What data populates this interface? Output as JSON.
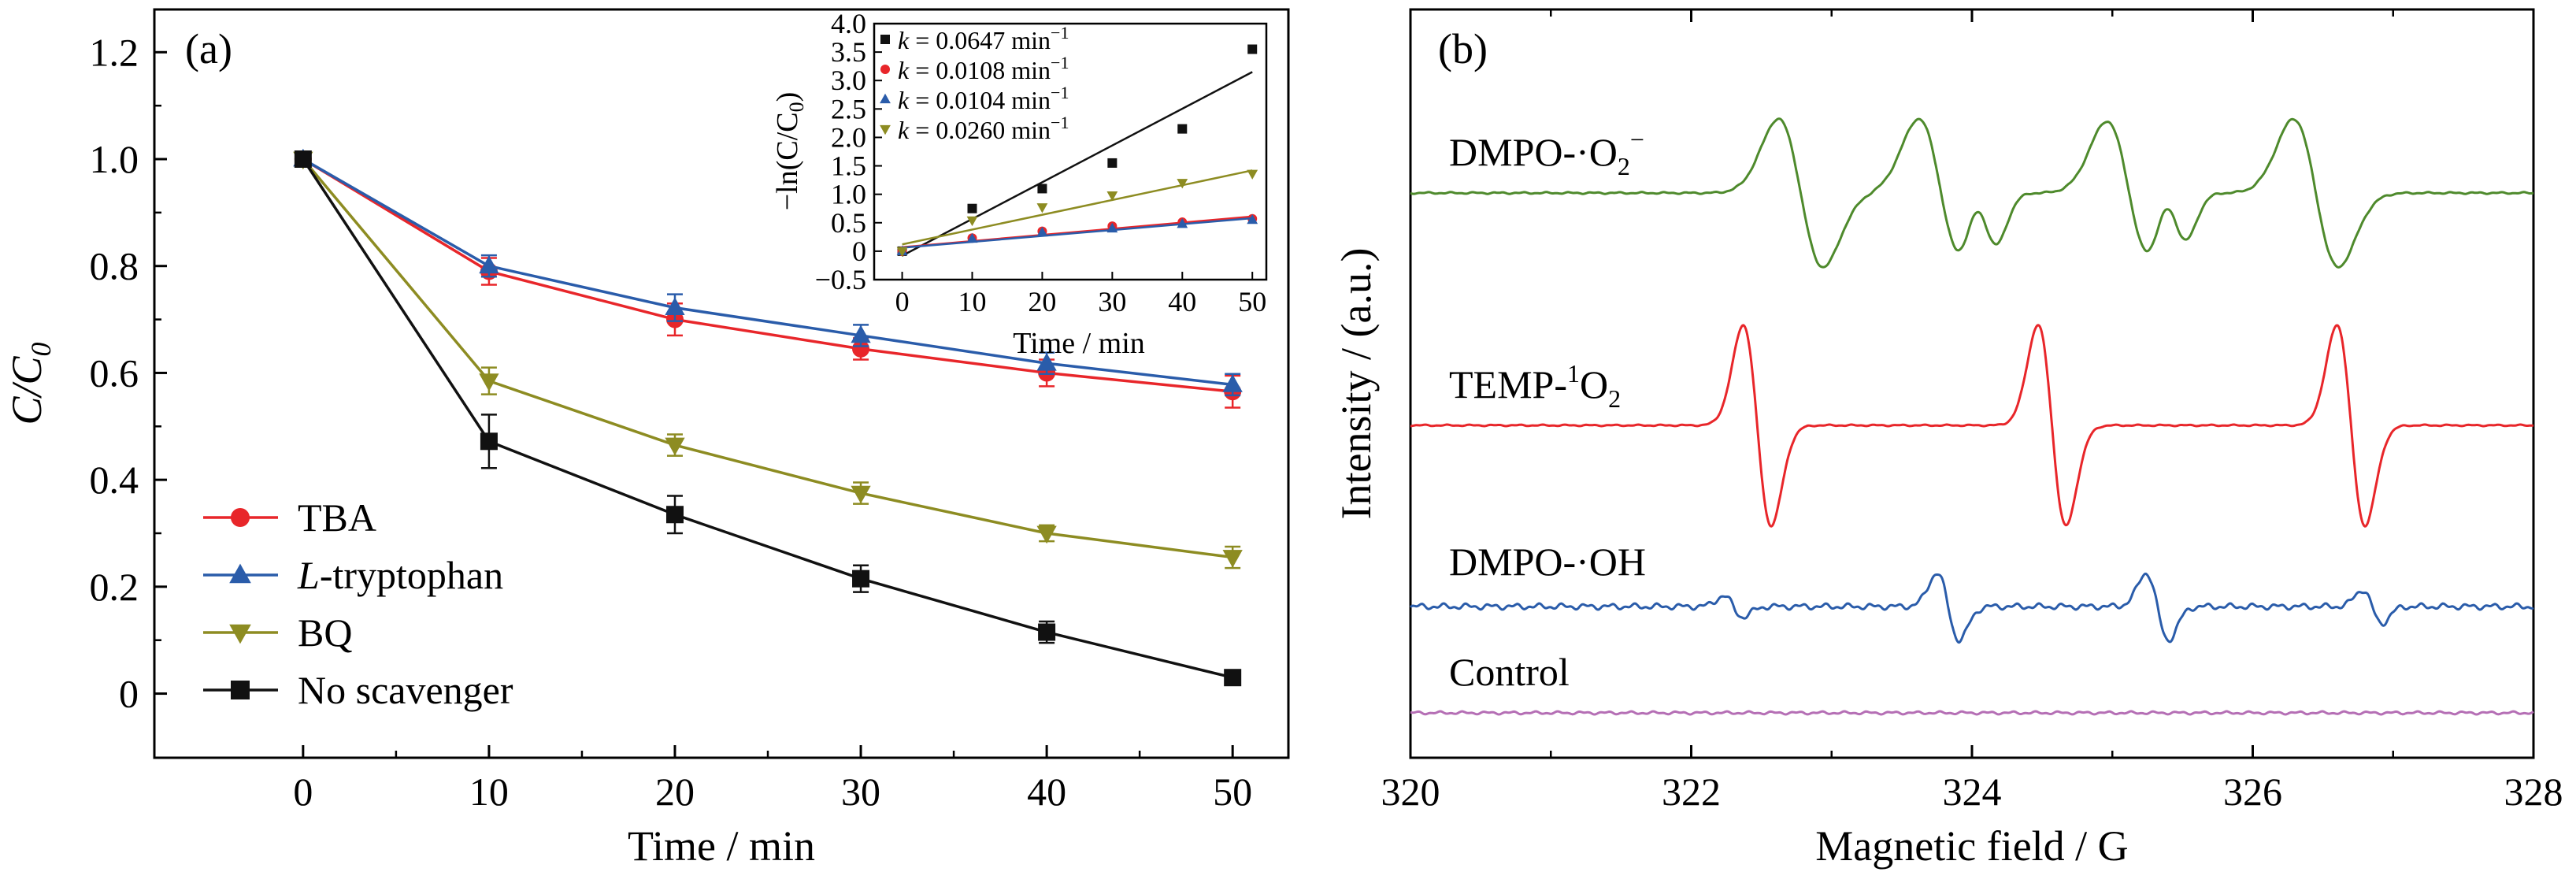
{
  "chart_data": [
    {
      "panel": "(a)",
      "type": "line",
      "xlabel": "Time / min",
      "ylabel": "C/C",
      "ylabel_sub": "0",
      "xlim": [
        -8,
        53
      ],
      "ylim": [
        -0.12,
        1.28
      ],
      "xticks": [
        "0",
        "10",
        "20",
        "30",
        "40",
        "50"
      ],
      "xtick_values": [
        0,
        10,
        20,
        30,
        40,
        50
      ],
      "yticks": [
        "0",
        "0.2",
        "0.4",
        "0.6",
        "0.8",
        "1.0",
        "1.2"
      ],
      "ytick_values": [
        0,
        0.2,
        0.4,
        0.6,
        0.8,
        1.0,
        1.2
      ],
      "x": [
        0,
        10,
        20,
        30,
        40,
        50
      ],
      "legend_position": "bottom-left",
      "series": [
        {
          "name": "TBA",
          "name_italic": "",
          "color": "#e8262a",
          "marker": "circle",
          "values": [
            1.0,
            0.79,
            0.7,
            0.645,
            0.6,
            0.565
          ],
          "errors": [
            0.01,
            0.025,
            0.03,
            0.02,
            0.025,
            0.03
          ]
        },
        {
          "name": "-tryptophan",
          "name_italic": "L",
          "color": "#2a5caa",
          "marker": "triangle-up",
          "values": [
            1.0,
            0.8,
            0.722,
            0.67,
            0.618,
            0.578
          ],
          "errors": [
            0.01,
            0.02,
            0.025,
            0.02,
            0.02,
            0.02
          ]
        },
        {
          "name": "BQ",
          "name_italic": "",
          "color": "#8d8c22",
          "marker": "triangle-down",
          "values": [
            1.0,
            0.585,
            0.465,
            0.375,
            0.3,
            0.255
          ],
          "errors": [
            0.01,
            0.025,
            0.02,
            0.02,
            0.015,
            0.02
          ]
        },
        {
          "name": "No scavenger",
          "name_italic": "",
          "color": "#111111",
          "marker": "square",
          "values": [
            1.0,
            0.472,
            0.335,
            0.215,
            0.115,
            0.03
          ],
          "errors": [
            0.01,
            0.05,
            0.035,
            0.025,
            0.02,
            0.01
          ]
        }
      ]
    },
    {
      "panel": "inset",
      "type": "scatter",
      "xlabel": "Time / min",
      "ylabel": "−ln(C/C",
      "ylabel_sub": "0",
      "ylabel_close": ")",
      "xlim": [
        -4,
        52
      ],
      "ylim": [
        -0.5,
        4.0
      ],
      "xticks": [
        "0",
        "10",
        "20",
        "30",
        "40",
        "50"
      ],
      "xtick_values": [
        0,
        10,
        20,
        30,
        40,
        50
      ],
      "yticks": [
        "−0.5",
        "0",
        "0.5",
        "1.0",
        "1.5",
        "2.0",
        "2.5",
        "3.0",
        "3.5",
        "4.0"
      ],
      "ytick_values": [
        -0.5,
        0,
        0.5,
        1.0,
        1.5,
        2.0,
        2.5,
        3.0,
        3.5,
        4.0
      ],
      "x": [
        0,
        10,
        20,
        30,
        40,
        50
      ],
      "legend_position": "top-left",
      "series": [
        {
          "name": " = 0.0647 min",
          "k": "k",
          "sup": "−1",
          "color": "#111111",
          "marker": "square",
          "values": [
            0.0,
            0.75,
            1.1,
            1.55,
            2.15,
            3.55
          ],
          "fit": [
            -0.08,
            3.15
          ]
        },
        {
          "name": " = 0.0108 min",
          "k": "k",
          "sup": "−1",
          "color": "#e8262a",
          "marker": "circle",
          "values": [
            0.0,
            0.23,
            0.35,
            0.44,
            0.51,
            0.57
          ],
          "fit": [
            0.07,
            0.61
          ]
        },
        {
          "name": " = 0.0104 min",
          "k": "k",
          "sup": "−1",
          "color": "#2a5caa",
          "marker": "triangle-up",
          "values": [
            0.0,
            0.22,
            0.33,
            0.4,
            0.48,
            0.55
          ],
          "fit": [
            0.06,
            0.58
          ]
        },
        {
          "name": " = 0.0260 min",
          "k": "k",
          "sup": "−1",
          "color": "#8d8c22",
          "marker": "triangle-down",
          "values": [
            0.0,
            0.54,
            0.77,
            0.98,
            1.2,
            1.36
          ],
          "fit": [
            0.12,
            1.42
          ]
        }
      ]
    },
    {
      "panel": "(b)",
      "type": "line",
      "xlabel": "Magnetic field / G",
      "ylabel": "Intensity / (a.u.)",
      "xlim": [
        320,
        328
      ],
      "xticks": [
        "320",
        "322",
        "324",
        "326",
        "328"
      ],
      "xtick_values": [
        320,
        322,
        324,
        326,
        328
      ],
      "series": [
        {
          "name": "DMPO-·O",
          "sub": "2",
          "sup": "−",
          "color": "#4e8a2c",
          "kind": "dmpo-o2"
        },
        {
          "name": "TEMP-",
          "pre_sup": "1",
          "tail": "O",
          "sub": "2",
          "color": "#e8262a",
          "kind": "temp"
        },
        {
          "name": "DMPO-·OH",
          "color": "#2a5caa",
          "kind": "dmpo-oh"
        },
        {
          "name": "Control",
          "color": "#b56fb5",
          "kind": "control"
        }
      ]
    }
  ]
}
